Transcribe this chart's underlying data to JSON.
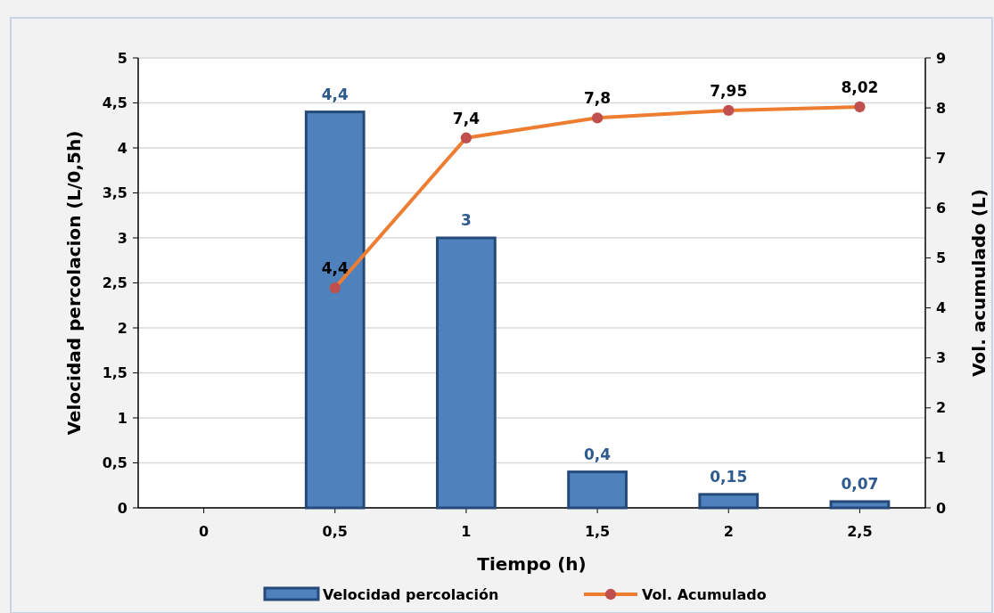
{
  "chart_data": {
    "type": "bar",
    "xlabel": "Tiempo (h)",
    "ylabel": "Velocidad percolacion (L/0,5h)",
    "y2label": "Vol. acumulado (L)",
    "categories": [
      "0",
      "0,5",
      "1",
      "1,5",
      "2",
      "2,5"
    ],
    "series": [
      {
        "name": "Velocidad percolación",
        "color": "#4f81bd",
        "values": [
          null,
          4.4,
          3,
          0.4,
          0.15,
          0.07
        ],
        "value_labels": [
          null,
          "4,4",
          "3",
          "0,4",
          "0,15",
          "0,07"
        ]
      },
      {
        "name": "Vol. Acumulado",
        "type": "line",
        "axis": "y2",
        "color": "#ed7d31",
        "values": [
          null,
          4.4,
          7.4,
          7.8,
          7.95,
          8.02
        ],
        "value_labels": [
          null,
          "4,4",
          "7,4",
          "7,8",
          "7,95",
          "8,02"
        ]
      }
    ],
    "ylim": [
      0,
      5
    ],
    "yticks": [
      0,
      {
        "value": 0.5,
        "label": "0,5"
      },
      1,
      {
        "value": 1.5,
        "label": "1,5"
      },
      2,
      {
        "value": 2.5,
        "label": "2,5"
      },
      3,
      {
        "value": 3.5,
        "label": "3,5"
      },
      4,
      {
        "value": 4.5,
        "label": "4,5"
      },
      5
    ],
    "y2lim": [
      0,
      9
    ],
    "y2ticks": [
      0,
      1,
      2,
      3,
      4,
      5,
      6,
      7,
      8,
      9
    ],
    "grid": "y",
    "legend": "bottom",
    "marker": "circle",
    "line_style": "solid"
  }
}
